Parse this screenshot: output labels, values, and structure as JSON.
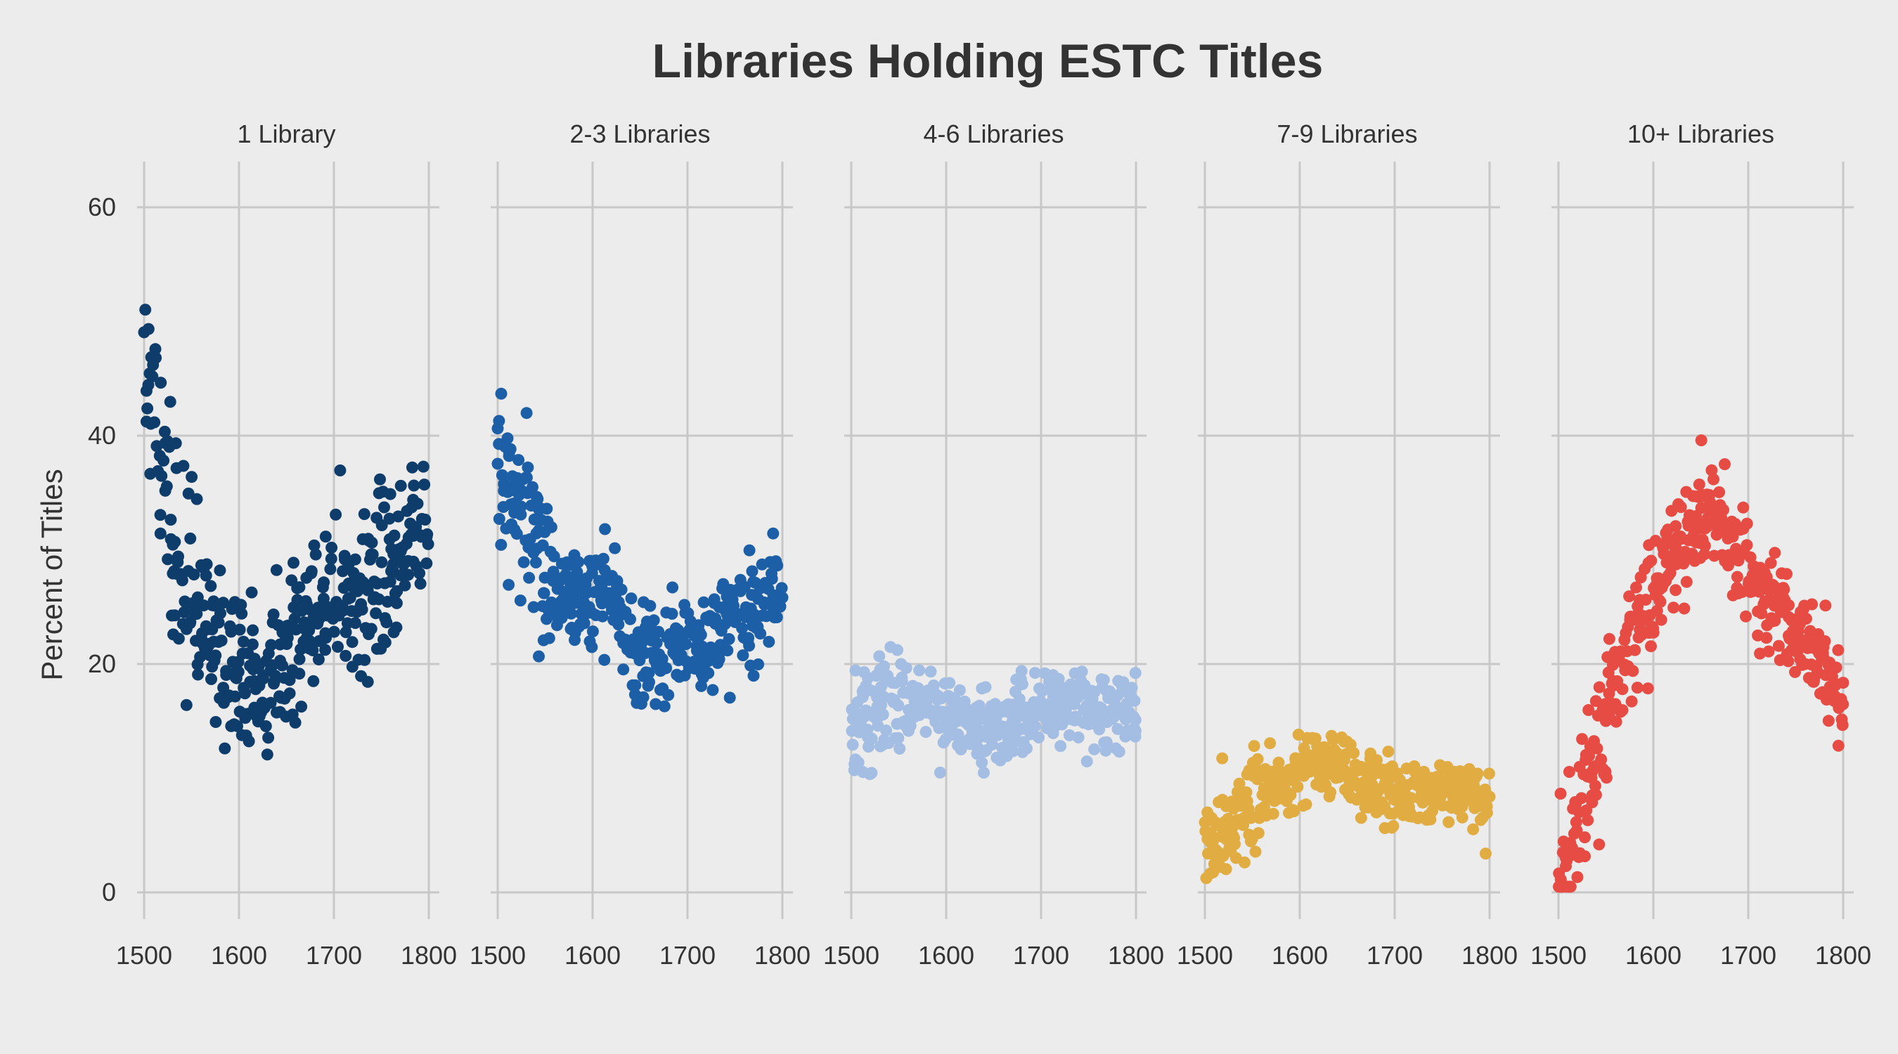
{
  "chart_data": {
    "type": "scatter",
    "title": "Libraries Holding ESTC Titles",
    "ylabel": "Percent of Titles",
    "xlabel": "",
    "xlim": [
      1500,
      1800
    ],
    "ylim": [
      0,
      60
    ],
    "x_ticks": [
      1500,
      1600,
      1700,
      1800
    ],
    "y_ticks": [
      0,
      20,
      40,
      60
    ],
    "grid": true,
    "legend": "none",
    "facets": [
      {
        "name": "1 Library",
        "color": "#0e3c6b",
        "trend": [
          [
            1500,
            44
          ],
          [
            1520,
            39
          ],
          [
            1540,
            28
          ],
          [
            1560,
            25
          ],
          [
            1580,
            21
          ],
          [
            1600,
            19.5
          ],
          [
            1620,
            19
          ],
          [
            1640,
            19.5
          ],
          [
            1660,
            21.5
          ],
          [
            1680,
            24
          ],
          [
            1700,
            26.5
          ],
          [
            1720,
            26
          ],
          [
            1740,
            26.5
          ],
          [
            1760,
            28.5
          ],
          [
            1780,
            31
          ],
          [
            1800,
            33
          ]
        ],
        "noise": 3.3
      },
      {
        "name": "2-3 Libraries",
        "color": "#1d5fa6",
        "trend": [
          [
            1500,
            37
          ],
          [
            1520,
            33
          ],
          [
            1540,
            29.5
          ],
          [
            1560,
            27
          ],
          [
            1580,
            26
          ],
          [
            1600,
            26
          ],
          [
            1620,
            25.5
          ],
          [
            1640,
            22
          ],
          [
            1660,
            20.5
          ],
          [
            1680,
            21
          ],
          [
            1700,
            21.5
          ],
          [
            1720,
            22
          ],
          [
            1740,
            23
          ],
          [
            1760,
            25
          ],
          [
            1780,
            26
          ],
          [
            1800,
            26.5
          ]
        ],
        "noise": 2.2
      },
      {
        "name": "4-6 Libraries",
        "color": "#a3bde3",
        "trend": [
          [
            1500,
            13
          ],
          [
            1520,
            15
          ],
          [
            1540,
            17
          ],
          [
            1560,
            16.5
          ],
          [
            1580,
            16
          ],
          [
            1600,
            15.5
          ],
          [
            1620,
            15
          ],
          [
            1640,
            14.5
          ],
          [
            1660,
            15
          ],
          [
            1680,
            15.2
          ],
          [
            1700,
            15.5
          ],
          [
            1720,
            16
          ],
          [
            1740,
            16
          ],
          [
            1760,
            16
          ],
          [
            1780,
            15.8
          ],
          [
            1800,
            15.5
          ]
        ],
        "noise": 1.6
      },
      {
        "name": "7-9 Libraries",
        "color": "#e1ad43",
        "trend": [
          [
            1500,
            4
          ],
          [
            1520,
            4.5
          ],
          [
            1540,
            7
          ],
          [
            1560,
            9
          ],
          [
            1580,
            10
          ],
          [
            1600,
            11
          ],
          [
            1620,
            11.5
          ],
          [
            1640,
            11
          ],
          [
            1660,
            10
          ],
          [
            1680,
            9
          ],
          [
            1700,
            8.5
          ],
          [
            1720,
            8.5
          ],
          [
            1740,
            9
          ],
          [
            1760,
            8.5
          ],
          [
            1780,
            8
          ],
          [
            1800,
            7.5
          ]
        ],
        "noise": 1.4
      },
      {
        "name": "10+ Libraries",
        "color": "#e74c44",
        "trend": [
          [
            1500,
            2
          ],
          [
            1520,
            5
          ],
          [
            1540,
            11
          ],
          [
            1560,
            18
          ],
          [
            1580,
            23
          ],
          [
            1600,
            26.5
          ],
          [
            1620,
            29
          ],
          [
            1640,
            32
          ],
          [
            1660,
            34
          ],
          [
            1680,
            31
          ],
          [
            1700,
            26.5
          ],
          [
            1720,
            25.5
          ],
          [
            1740,
            24
          ],
          [
            1760,
            22
          ],
          [
            1780,
            19.5
          ],
          [
            1800,
            17
          ]
        ],
        "noise": 2.3
      }
    ]
  }
}
